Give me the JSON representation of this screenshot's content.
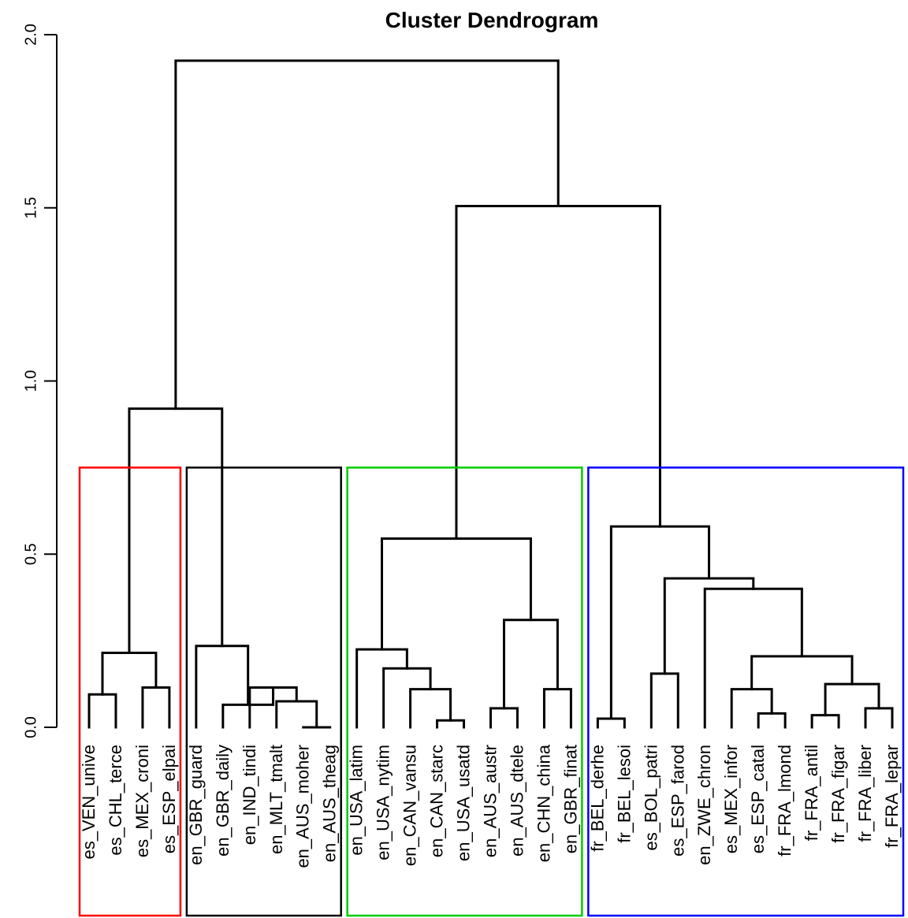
{
  "chart_data": {
    "type": "dendrogram",
    "title": "Cluster Dendrogram",
    "ylim": [
      0,
      2.0
    ],
    "yticks": [
      "0.0",
      "0.5",
      "1.0",
      "1.5",
      "2.0"
    ],
    "labels": [
      "es_VEN_unive",
      "es_CHL_terce",
      "es_MEX_croni",
      "es_ESP_elpai",
      "en_GBR_guard",
      "en_GBR_daily",
      "en_IND_tindi",
      "en_MLT_tmalt",
      "en_AUS_moher",
      "en_AUS_theag",
      "en_USA_latim",
      "en_USA_nytim",
      "en_CAN_vansu",
      "en_CAN_starc",
      "en_USA_usatd",
      "en_AUS_austr",
      "en_AUS_dtele",
      "en_CHN_china",
      "en_GBR_finat",
      "fr_BEL_derhe",
      "fr_BEL_lesoi",
      "es_BOL_patri",
      "es_ESP_farod",
      "en_ZWE_chron",
      "es_MEX_infor",
      "es_ESP_catal",
      "fr_FRA_lmond",
      "fr_FRA_antil",
      "fr_FRA_figar",
      "fr_FRA_liber",
      "fr_FRA_lepar"
    ],
    "merges": [
      {
        "a": "L0",
        "b": "L1",
        "height": 0.095
      },
      {
        "a": "L2",
        "b": "L3",
        "height": 0.115
      },
      {
        "a": "M0",
        "b": "M1",
        "height": 0.215
      },
      {
        "a": "L8",
        "b": "L9",
        "height": 0.0
      },
      {
        "a": "L7",
        "b": "M3",
        "height": 0.075
      },
      {
        "a": "L6",
        "b": "M4",
        "height": 0.115
      },
      {
        "a": "L5",
        "b": "M5",
        "height": 0.065
      },
      {
        "a": "L4",
        "b": "M6",
        "height": 0.235
      },
      {
        "a": "M2",
        "b": "M7",
        "height": 0.92
      },
      {
        "a": "L13",
        "b": "L14",
        "height": 0.02
      },
      {
        "a": "L12",
        "b": "M9",
        "height": 0.11
      },
      {
        "a": "L11",
        "b": "M10",
        "height": 0.17
      },
      {
        "a": "L10",
        "b": "M11",
        "height": 0.225
      },
      {
        "a": "L15",
        "b": "L16",
        "height": 0.055
      },
      {
        "a": "L17",
        "b": "L18",
        "height": 0.11
      },
      {
        "a": "M13",
        "b": "M14",
        "height": 0.31
      },
      {
        "a": "M12",
        "b": "M15",
        "height": 0.545
      },
      {
        "a": "L19",
        "b": "L20",
        "height": 0.025
      },
      {
        "a": "L21",
        "b": "L22",
        "height": 0.155
      },
      {
        "a": "L25",
        "b": "L26",
        "height": 0.04
      },
      {
        "a": "L24",
        "b": "M19",
        "height": 0.11
      },
      {
        "a": "L27",
        "b": "L28",
        "height": 0.035
      },
      {
        "a": "L29",
        "b": "L30",
        "height": 0.055
      },
      {
        "a": "M21",
        "b": "M22",
        "height": 0.125
      },
      {
        "a": "M20",
        "b": "M23",
        "height": 0.205
      },
      {
        "a": "L23",
        "b": "M24",
        "height": 0.4
      },
      {
        "a": "M18",
        "b": "M25",
        "height": 0.43
      },
      {
        "a": "M17",
        "b": "M26",
        "height": 0.58
      },
      {
        "a": "M16",
        "b": "M27",
        "height": 1.505
      },
      {
        "a": "M8",
        "b": "M28",
        "height": 1.925
      }
    ],
    "cluster_boxes": [
      {
        "from": 0,
        "to": 3,
        "color": "#ff0000"
      },
      {
        "from": 4,
        "to": 9,
        "color": "#000000"
      },
      {
        "from": 10,
        "to": 18,
        "color": "#00cd00"
      },
      {
        "from": 19,
        "to": 30,
        "color": "#0000ff"
      }
    ],
    "cluster_cut_height": 0.75,
    "grid": false,
    "legend": "none"
  }
}
